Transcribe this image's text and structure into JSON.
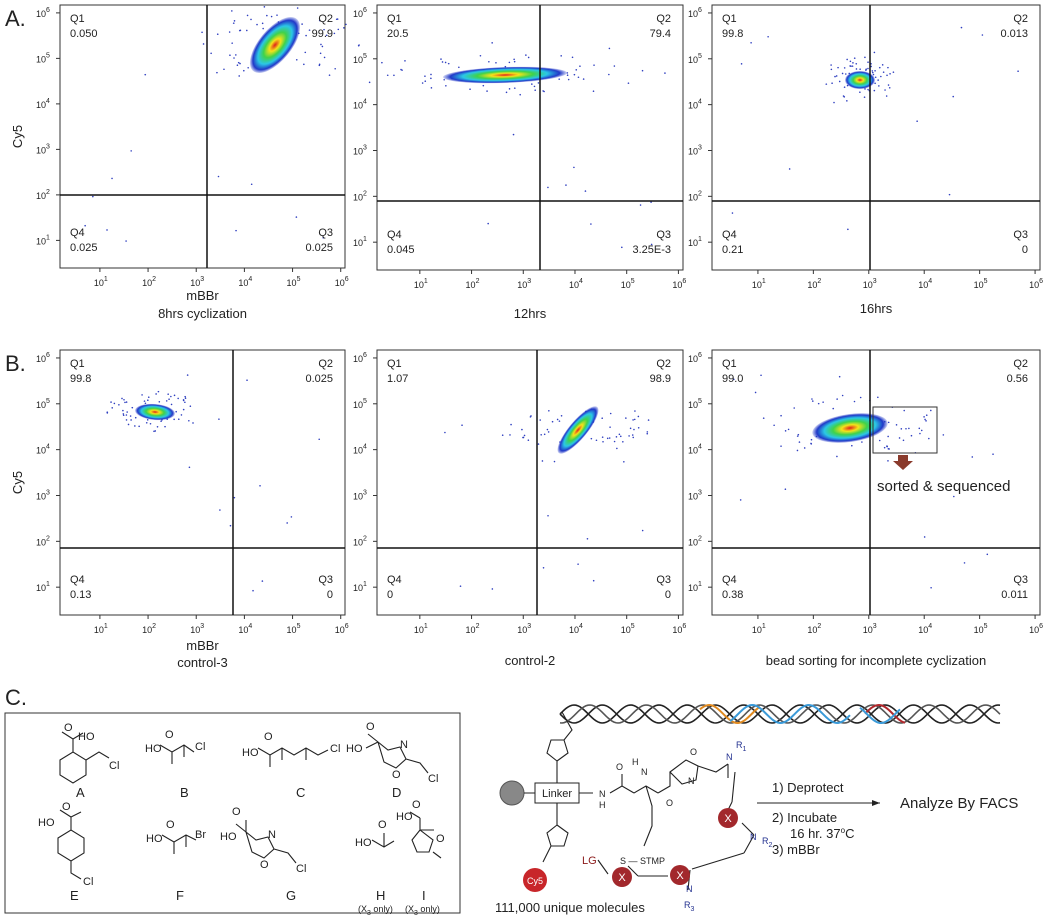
{
  "panel_labels": [
    "A.",
    "B.",
    "C."
  ],
  "axis": {
    "base": "10",
    "exponents": [
      "1",
      "2",
      "3",
      "4",
      "5",
      "6"
    ]
  },
  "plots": [
    {
      "y_label": "Cy5",
      "x_label": "mBBr",
      "caption": "8hrs cyclization",
      "quadrants": [
        {
          "name": "Q1",
          "value": "0.050"
        },
        {
          "name": "Q2",
          "value": "99.9"
        },
        {
          "name": "Q4",
          "value": "0.025"
        },
        {
          "name": "Q3",
          "value": "0.025"
        }
      ]
    },
    {
      "caption": "12hrs",
      "quadrants": [
        {
          "name": "Q1",
          "value": "20.5"
        },
        {
          "name": "Q2",
          "value": "79.4"
        },
        {
          "name": "Q4",
          "value": "0.045"
        },
        {
          "name": "Q3",
          "value": "3.25E-3"
        }
      ]
    },
    {
      "caption": "16hrs",
      "quadrants": [
        {
          "name": "Q1",
          "value": "99.8"
        },
        {
          "name": "Q2",
          "value": "0.013"
        },
        {
          "name": "Q4",
          "value": "0.21"
        },
        {
          "name": "Q3",
          "value": "0"
        }
      ]
    },
    {
      "y_label": "Cy5",
      "x_label": "mBBr",
      "caption": "control-3",
      "quadrants": [
        {
          "name": "Q1",
          "value": "99.8"
        },
        {
          "name": "Q2",
          "value": "0.025"
        },
        {
          "name": "Q4",
          "value": "0.13"
        },
        {
          "name": "Q3",
          "value": "0"
        }
      ]
    },
    {
      "caption": "control-2",
      "quadrants": [
        {
          "name": "Q1",
          "value": "1.07"
        },
        {
          "name": "Q2",
          "value": "98.9"
        },
        {
          "name": "Q4",
          "value": "0"
        },
        {
          "name": "Q3",
          "value": "0"
        }
      ]
    },
    {
      "caption": "bead sorting for incomplete cyclization",
      "annotation": "sorted & sequenced",
      "quadrants": [
        {
          "name": "Q1",
          "value": "99.0"
        },
        {
          "name": "Q2",
          "value": "0.56"
        },
        {
          "name": "Q4",
          "value": "0.38"
        },
        {
          "name": "Q3",
          "value": "0.011"
        }
      ]
    }
  ],
  "molecules": [
    {
      "label": "A",
      "atoms": [
        "O",
        "HO",
        "Cl"
      ]
    },
    {
      "label": "B",
      "atoms": [
        "O",
        "HO",
        "Cl"
      ]
    },
    {
      "label": "C",
      "atoms": [
        "O",
        "HO",
        "Cl"
      ]
    },
    {
      "label": "D",
      "atoms": [
        "O",
        "HO",
        "N",
        "O",
        "Cl"
      ]
    },
    {
      "label": "E",
      "atoms": [
        "O",
        "HO",
        "Cl"
      ]
    },
    {
      "label": "F",
      "atoms": [
        "O",
        "HO",
        "Br"
      ]
    },
    {
      "label": "G",
      "atoms": [
        "O",
        "HO",
        "N",
        "O",
        "Cl"
      ]
    },
    {
      "label": "H",
      "atoms": [
        "O",
        "HO"
      ],
      "note": {
        "pre": "(X",
        "sub": "3",
        "post": " only)"
      }
    },
    {
      "label": "I",
      "atoms": [
        "O",
        "HO",
        "O"
      ],
      "note": {
        "pre": "(X",
        "sub": "3",
        "post": " only)"
      }
    }
  ],
  "scheme": {
    "linker": "Linker",
    "dye": "Cy5",
    "residue": "X",
    "leaving_group": "LG",
    "thiol": "S",
    "protect": "STMP",
    "atoms": {
      "N": "N",
      "H": "H",
      "O": "O",
      "R": "R",
      "r1": "1",
      "r2": "2",
      "r3": "3"
    },
    "steps": [
      "1) Deprotect",
      "2) Incubate",
      "3) mBBr"
    ],
    "conditions": {
      "pre": "16 hr. 37",
      "sup": "o",
      "post": "C"
    },
    "result": "Analyze By FACS",
    "library": "111,000 unique molecules"
  }
}
